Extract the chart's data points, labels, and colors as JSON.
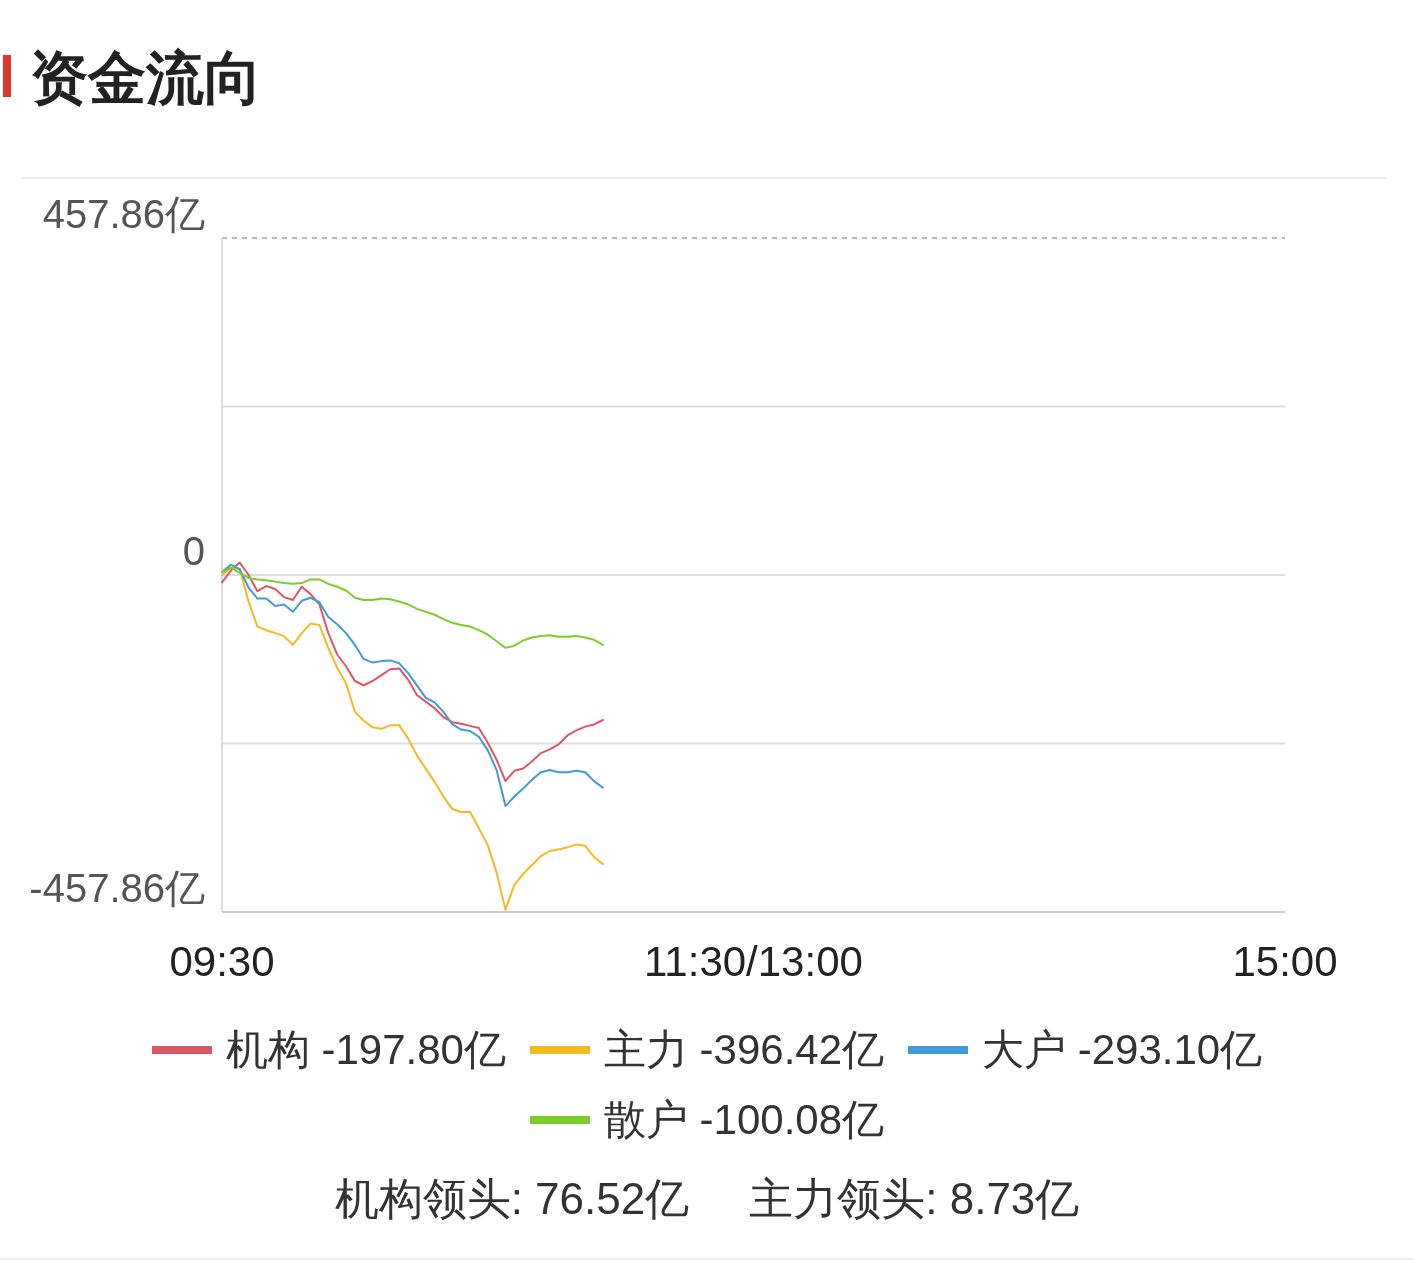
{
  "chart_data": {
    "type": "line",
    "title": "资金流向",
    "categories": [
      "09:30",
      null,
      null,
      null,
      null,
      null,
      null,
      null,
      null,
      null,
      null,
      null,
      null,
      null,
      null,
      null,
      null,
      null,
      null,
      null,
      null,
      null,
      null,
      null,
      null,
      null,
      null,
      null,
      null,
      null,
      null,
      null,
      null,
      null,
      null,
      null,
      null,
      null,
      null,
      null,
      null,
      null,
      null,
      null,
      null,
      null,
      null,
      null,
      null,
      null,
      null,
      null,
      null,
      null,
      null,
      null,
      null,
      null,
      null,
      null,
      "11:30/13:00",
      null,
      null,
      null,
      null,
      null,
      null,
      null,
      null,
      null,
      null,
      null,
      null,
      null,
      null,
      null,
      null,
      null,
      null,
      null,
      null,
      null,
      null,
      null,
      null,
      null,
      null,
      null,
      null,
      null,
      null,
      null,
      null,
      null,
      null,
      null,
      null,
      null,
      null,
      null,
      null,
      null,
      null,
      null,
      null,
      null,
      null,
      null,
      null,
      null,
      null,
      null,
      null,
      null,
      null,
      null,
      null,
      null,
      null,
      null,
      "15:00"
    ],
    "ylim": [
      -457.86,
      457.86
    ],
    "yticks": [
      {
        "value": 457.86,
        "label": "457.86亿"
      },
      {
        "value": 228.93,
        "label": null
      },
      {
        "value": 0,
        "label": "0"
      },
      {
        "value": -228.93,
        "label": null
      },
      {
        "value": -457.86,
        "label": "-457.86亿"
      }
    ],
    "grid": "y",
    "legend": "bottom",
    "series": [
      {
        "name": "机构 -197.80亿",
        "color": "#dc5766",
        "values": [
          -10,
          6,
          17,
          0,
          -22,
          -15,
          -19,
          -30,
          -34,
          -16,
          -26,
          -40,
          -79,
          -108,
          -124,
          -144,
          -150,
          -144,
          -136,
          -128,
          -127,
          -142,
          -163,
          -172,
          -181,
          -193,
          -200,
          -202,
          -205,
          -208,
          -228,
          -251,
          -280,
          -266,
          -263,
          -253,
          -242,
          -237,
          -230,
          -218,
          -211,
          -206,
          -203,
          -197,
          null,
          null,
          null,
          null,
          null,
          null,
          null,
          null,
          null,
          null,
          null,
          null,
          null,
          null,
          null,
          null,
          null,
          null,
          null,
          null,
          null,
          null,
          null,
          null,
          null,
          null,
          null,
          null,
          null,
          null,
          null,
          null,
          null,
          null,
          null,
          null,
          null,
          null,
          null,
          null,
          null,
          null,
          null,
          null,
          null,
          null,
          null,
          null,
          null,
          null,
          null,
          null,
          null,
          null,
          null,
          null,
          null,
          null,
          null,
          null,
          null,
          null,
          null,
          null,
          null,
          null,
          null,
          null,
          null,
          null,
          null,
          null,
          null,
          null,
          null,
          null,
          null
        ]
      },
      {
        "name": "主力 -396.42亿",
        "color": "#f5b922",
        "values": [
          0,
          10,
          8,
          -36,
          -70,
          -75,
          -79,
          -83,
          -95,
          -79,
          -66,
          -68,
          -99,
          -126,
          -147,
          -186,
          -198,
          -207,
          -209,
          -204,
          -204,
          -222,
          -245,
          -263,
          -281,
          -301,
          -318,
          -322,
          -322,
          -344,
          -367,
          -404,
          -455,
          -421,
          -406,
          -394,
          -382,
          -375,
          -373,
          -370,
          -366,
          -368,
          -383,
          -393,
          null,
          null,
          null,
          null,
          null,
          null,
          null,
          null,
          null,
          null,
          null,
          null,
          null,
          null,
          null,
          null,
          null,
          null,
          null,
          null,
          null,
          null,
          null,
          null,
          null,
          null,
          null,
          null,
          null,
          null,
          null,
          null,
          null,
          null,
          null,
          null,
          null,
          null,
          null,
          null,
          null,
          null,
          null,
          null,
          null,
          null,
          null,
          null,
          null,
          null,
          null,
          null,
          null,
          null,
          null,
          null,
          null,
          null,
          null,
          null,
          null,
          null,
          null,
          null,
          null,
          null,
          null,
          null,
          null,
          null,
          null,
          null,
          null,
          null,
          null,
          null,
          null
        ]
      },
      {
        "name": "大户 -293.10亿",
        "color": "#409bd6",
        "values": [
          4,
          14,
          8,
          -17,
          -32,
          -32,
          -42,
          -40,
          -50,
          -35,
          -31,
          -37,
          -57,
          -67,
          -79,
          -95,
          -114,
          -119,
          -117,
          -116,
          -120,
          -133,
          -150,
          -167,
          -173,
          -186,
          -203,
          -210,
          -212,
          -220,
          -238,
          -265,
          -314,
          -301,
          -290,
          -278,
          -268,
          -265,
          -268,
          -268,
          -266,
          -268,
          -280,
          -289,
          null,
          null,
          null,
          null,
          null,
          null,
          null,
          null,
          null,
          null,
          null,
          null,
          null,
          null,
          null,
          null,
          null,
          null,
          null,
          null,
          null,
          null,
          null,
          null,
          null,
          null,
          null,
          null,
          null,
          null,
          null,
          null,
          null,
          null,
          null,
          null,
          null,
          null,
          null,
          null,
          null,
          null,
          null,
          null,
          null,
          null,
          null,
          null,
          null,
          null,
          null,
          null,
          null,
          null,
          null,
          null,
          null,
          null,
          null,
          null,
          null,
          null,
          null,
          null,
          null,
          null,
          null,
          null,
          null,
          null,
          null,
          null,
          null,
          null,
          null,
          null,
          null
        ]
      },
      {
        "name": "散户 -100.08亿",
        "color": "#7ccd2c",
        "values": [
          4,
          10,
          3,
          -4,
          -6,
          -7,
          -9,
          -11,
          -12,
          -11,
          -6,
          -6,
          -12,
          -16,
          -21,
          -31,
          -34,
          -34,
          -32,
          -33,
          -36,
          -40,
          -46,
          -50,
          -54,
          -60,
          -65,
          -68,
          -70,
          -75,
          -81,
          -90,
          -99,
          -96,
          -89,
          -85,
          -83,
          -82,
          -84,
          -84,
          -83,
          -85,
          -88,
          -95,
          null,
          null,
          null,
          null,
          null,
          null,
          null,
          null,
          null,
          null,
          null,
          null,
          null,
          null,
          null,
          null,
          null,
          null,
          null,
          null,
          null,
          null,
          null,
          null,
          null,
          null,
          null,
          null,
          null,
          null,
          null,
          null,
          null,
          null,
          null,
          null,
          null,
          null,
          null,
          null,
          null,
          null,
          null,
          null,
          null,
          null,
          null,
          null,
          null,
          null,
          null,
          null,
          null,
          null,
          null,
          null,
          null,
          null,
          null,
          null,
          null,
          null,
          null,
          null,
          null,
          null,
          null,
          null,
          null,
          null,
          null,
          null,
          null,
          null,
          null,
          null,
          null
        ]
      }
    ],
    "annotations": [
      "机构领头: 76.52亿",
      "主力领头: 8.73亿"
    ]
  }
}
